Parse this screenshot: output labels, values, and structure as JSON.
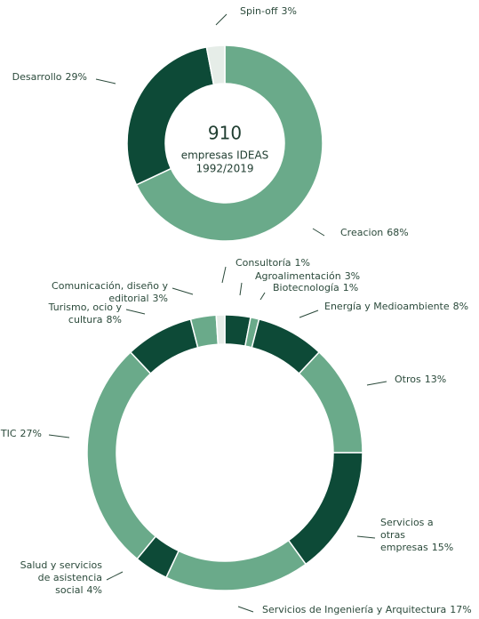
{
  "chart_data": [
    {
      "type": "donut",
      "center_text": [
        "910",
        "empresas IDEAS",
        "1992/2019"
      ],
      "categories": [
        "Creacion",
        "Desarrollo",
        "Spin-off"
      ],
      "values": [
        68,
        29,
        3
      ],
      "value_labels": [
        "68%",
        "29%",
        "3%"
      ],
      "colors": [
        "#6aaa8a",
        "#0d4a37",
        "#e6ede8"
      ]
    },
    {
      "type": "donut",
      "categories": [
        "Agroalimentación",
        "Biotecnología",
        "Energía y Medioambiente",
        "Otros",
        "Servicios a\notras empresas",
        "Servicios de Ingeniería y Arquitectura",
        "Salud y servicios\nde asistencia social",
        "TIC",
        "Turismo, ocio y cultura",
        "Comunicación, diseño y editorial",
        "Consultoría"
      ],
      "values": [
        3,
        1,
        8,
        13,
        15,
        17,
        4,
        27,
        8,
        3,
        1
      ],
      "value_labels": [
        "3%",
        "1%",
        "8%",
        "13%",
        "15%",
        "17%",
        "4%",
        "27%",
        "8%",
        "3%",
        "1%"
      ],
      "colors": [
        "#0d4a37",
        "#6aaa8a",
        "#0d4a37",
        "#6aaa8a",
        "#0d4a37",
        "#6aaa8a",
        "#0d4a37",
        "#6aaa8a",
        "#0d4a37",
        "#6aaa8a",
        "#e6ede8"
      ]
    }
  ]
}
